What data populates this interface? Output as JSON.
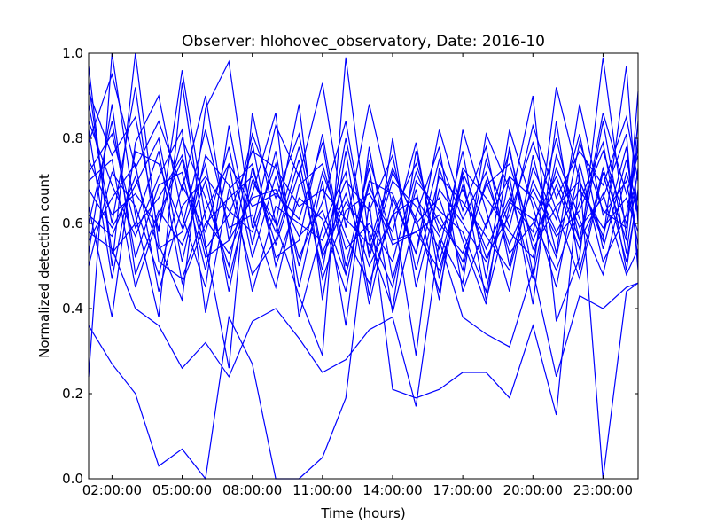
{
  "chart_data": {
    "type": "line",
    "title": "Observer: hlohovec_observatory, Date: 2016-10",
    "xlabel": "Time (hours)",
    "ylabel": "Normalized detection count",
    "xlim": [
      1,
      24.5
    ],
    "ylim": [
      0.0,
      1.0
    ],
    "x_ticks": [
      2,
      5,
      8,
      11,
      14,
      17,
      20,
      23
    ],
    "x_tick_labels": [
      "02:00:00",
      "05:00:00",
      "08:00:00",
      "11:00:00",
      "14:00:00",
      "17:00:00",
      "20:00:00",
      "23:00:00"
    ],
    "y_ticks": [
      0.0,
      0.2,
      0.4,
      0.6,
      0.8,
      1.0
    ],
    "y_tick_labels": [
      "0.0",
      "0.2",
      "0.4",
      "0.6",
      "0.8",
      "1.0"
    ],
    "grid": false,
    "line_color": "#0000ff",
    "x": [
      1,
      2,
      3,
      4,
      5,
      6,
      7,
      8,
      9,
      10,
      11,
      12,
      13,
      14,
      15,
      16,
      17,
      18,
      19,
      20,
      21,
      22,
      23,
      24,
      24.5
    ],
    "series": [
      {
        "values": [
          0.24,
          1.0,
          0.62,
          0.38,
          0.93,
          0.55,
          0.26,
          0.86,
          0.6,
          0.43,
          0.29,
          0.99,
          0.56,
          0.4,
          0.77,
          0.51,
          0.71,
          0.42,
          0.64,
          0.9,
          0.37,
          0.52,
          0.99,
          0.57,
          0.84
        ]
      },
      {
        "values": [
          0.36,
          0.27,
          0.2,
          0.03,
          0.07,
          0.0,
          0.38,
          0.27,
          0.0,
          0.0,
          0.05,
          0.19,
          0.65,
          0.21,
          0.19,
          0.21,
          0.25,
          0.25,
          0.19,
          0.36,
          0.15,
          0.72,
          0.0,
          0.44,
          0.46
        ]
      },
      {
        "values": [
          0.58,
          0.54,
          0.4,
          0.36,
          0.26,
          0.32,
          0.24,
          0.37,
          0.4,
          0.33,
          0.25,
          0.28,
          0.35,
          0.38,
          0.17,
          0.56,
          0.38,
          0.34,
          0.31,
          0.49,
          0.24,
          0.43,
          0.4,
          0.45,
          0.46
        ]
      },
      {
        "values": [
          0.88,
          0.6,
          0.92,
          0.51,
          0.47,
          0.63,
          0.74,
          0.64,
          0.67,
          0.61,
          0.79,
          0.48,
          0.69,
          0.55,
          0.58,
          0.62,
          0.51,
          0.7,
          0.55,
          0.68,
          0.57,
          0.63,
          0.77,
          0.6,
          0.72
        ]
      },
      {
        "values": [
          0.79,
          0.95,
          0.73,
          0.84,
          0.68,
          0.9,
          0.56,
          0.81,
          0.66,
          0.81,
          0.53,
          0.67,
          0.5,
          0.62,
          0.74,
          0.58,
          0.68,
          0.54,
          0.66,
          0.58,
          0.8,
          0.56,
          0.86,
          0.67,
          0.76
        ]
      },
      {
        "values": [
          0.97,
          0.5,
          1.0,
          0.55,
          0.42,
          0.87,
          0.98,
          0.59,
          0.83,
          0.71,
          0.93,
          0.59,
          0.88,
          0.64,
          0.29,
          0.73,
          0.56,
          0.41,
          0.78,
          0.48,
          0.92,
          0.7,
          0.56,
          0.97,
          0.6
        ]
      },
      {
        "values": [
          0.72,
          0.81,
          0.59,
          0.66,
          0.76,
          0.54,
          0.62,
          0.77,
          0.73,
          0.64,
          0.68,
          0.61,
          0.55,
          0.73,
          0.6,
          0.66,
          0.49,
          0.75,
          0.59,
          0.83,
          0.66,
          0.77,
          0.69,
          0.85,
          0.7
        ]
      },
      {
        "values": [
          0.64,
          0.38,
          0.79,
          0.9,
          0.62,
          0.45,
          0.83,
          0.55,
          0.77,
          0.45,
          0.7,
          0.36,
          0.78,
          0.47,
          0.68,
          0.42,
          0.82,
          0.63,
          0.44,
          0.76,
          0.53,
          0.88,
          0.62,
          0.7,
          0.55
        ]
      },
      {
        "values": [
          0.84,
          0.69,
          0.57,
          0.71,
          0.82,
          0.39,
          0.68,
          0.74,
          0.52,
          0.56,
          0.81,
          0.5,
          0.73,
          0.39,
          0.62,
          0.78,
          0.44,
          0.6,
          0.71,
          0.41,
          0.84,
          0.49,
          0.73,
          0.56,
          0.91
        ]
      },
      {
        "values": [
          0.53,
          0.88,
          0.48,
          0.63,
          0.55,
          0.7,
          0.47,
          0.7,
          0.6,
          0.88,
          0.42,
          0.77,
          0.43,
          0.8,
          0.45,
          0.68,
          0.6,
          0.51,
          0.65,
          0.61,
          0.49,
          0.65,
          0.79,
          0.49,
          0.68
        ]
      },
      {
        "values": [
          0.91,
          0.76,
          0.85,
          0.58,
          0.96,
          0.61,
          0.53,
          0.67,
          0.86,
          0.38,
          0.59,
          0.72,
          0.41,
          0.66,
          0.53,
          0.82,
          0.63,
          0.78,
          0.5,
          0.73,
          0.61,
          0.81,
          0.54,
          0.75,
          0.63
        ]
      },
      {
        "values": [
          0.68,
          0.59,
          0.69,
          0.8,
          0.51,
          0.76,
          0.69,
          0.48,
          0.56,
          0.75,
          0.47,
          0.63,
          0.67,
          0.58,
          0.79,
          0.47,
          0.73,
          0.66,
          0.58,
          0.52,
          0.73,
          0.59,
          0.66,
          0.81,
          0.49
        ]
      },
      {
        "values": [
          0.5,
          0.72,
          0.64,
          0.48,
          0.69,
          0.58,
          0.78,
          0.52,
          0.71,
          0.52,
          0.65,
          0.84,
          0.52,
          0.7,
          0.64,
          0.54,
          0.77,
          0.47,
          0.82,
          0.64,
          0.45,
          0.74,
          0.51,
          0.62,
          0.78
        ]
      },
      {
        "values": [
          0.82,
          0.47,
          0.77,
          0.74,
          0.59,
          0.82,
          0.59,
          0.62,
          0.45,
          0.69,
          0.74,
          0.54,
          0.6,
          0.51,
          0.72,
          0.6,
          0.53,
          0.69,
          0.74,
          0.56,
          0.69,
          0.54,
          0.84,
          0.53,
          0.73
        ]
      },
      {
        "values": [
          0.6,
          0.84,
          0.52,
          0.69,
          0.72,
          0.49,
          0.74,
          0.44,
          0.64,
          0.6,
          0.56,
          0.7,
          0.63,
          0.76,
          0.49,
          0.71,
          0.65,
          0.57,
          0.49,
          0.7,
          0.58,
          0.68,
          0.59,
          0.66,
          0.58
        ]
      },
      {
        "values": [
          0.75,
          0.62,
          0.67,
          0.59,
          0.8,
          0.66,
          0.5,
          0.79,
          0.5,
          0.66,
          0.61,
          0.44,
          0.75,
          0.56,
          0.58,
          0.49,
          0.69,
          0.52,
          0.62,
          0.79,
          0.63,
          0.47,
          0.72,
          0.51,
          0.67
        ]
      },
      {
        "values": [
          0.56,
          0.66,
          0.74,
          0.44,
          0.64,
          0.71,
          0.63,
          0.58,
          0.74,
          0.5,
          0.72,
          0.57,
          0.46,
          0.62,
          0.66,
          0.57,
          0.46,
          0.81,
          0.68,
          0.47,
          0.76,
          0.61,
          0.48,
          0.72,
          0.62
        ]
      },
      {
        "values": [
          0.93,
          0.53,
          0.6,
          0.77,
          0.46,
          0.6,
          0.66,
          0.71,
          0.58,
          0.78,
          0.52,
          0.65,
          0.58,
          0.45,
          0.7,
          0.63,
          0.58,
          0.44,
          0.71,
          0.66,
          0.52,
          0.79,
          0.63,
          0.59,
          0.8
        ]
      },
      {
        "values": [
          0.7,
          0.75,
          0.45,
          0.62,
          0.75,
          0.52,
          0.56,
          0.66,
          0.68,
          0.57,
          0.63,
          0.48,
          0.7,
          0.67,
          0.53,
          0.75,
          0.61,
          0.72,
          0.53,
          0.6,
          0.71,
          0.56,
          0.67,
          0.48,
          0.54
        ]
      },
      {
        "values": [
          0.62,
          0.57,
          0.71,
          0.54,
          0.58,
          0.74,
          0.44,
          0.73,
          0.55,
          0.72,
          0.49,
          0.8,
          0.53,
          0.72,
          0.61,
          0.44,
          0.72,
          0.59,
          0.77,
          0.54,
          0.64,
          0.7,
          0.57,
          0.78,
          0.51
        ]
      }
    ]
  }
}
